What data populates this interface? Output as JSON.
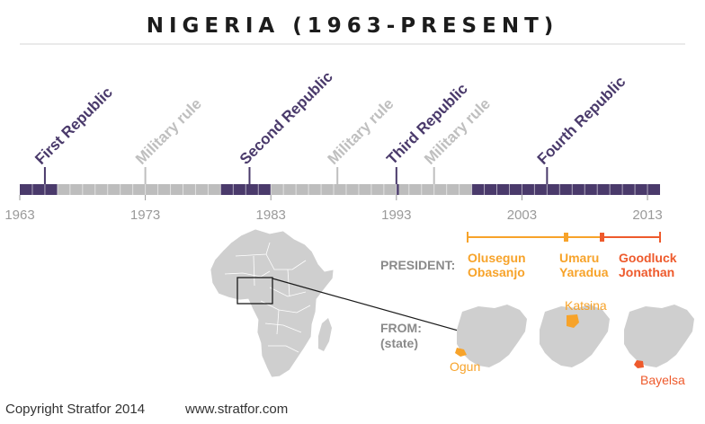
{
  "title": "NIGERIA (1963-PRESENT)",
  "colors": {
    "republic": "#4a3a6b",
    "military": "#bdbdbd",
    "military_text": "#bfbfbf",
    "axis_text": "#9a9a9a",
    "obasanjo": "#f7a32a",
    "yaradua": "#f7a32a",
    "jonathan": "#ee5a2c",
    "map_gray": "#cfcfcf"
  },
  "timeline": {
    "start_year": 1963,
    "end_year": 2014,
    "ticks": [
      "1963",
      "1973",
      "1983",
      "1993",
      "2003",
      "2013"
    ],
    "periods": [
      {
        "label": "First Republic",
        "kind": "republic",
        "start": 1963,
        "end": 1966,
        "marker": 1965
      },
      {
        "label": "Military rule",
        "kind": "military",
        "start": 1966,
        "end": 1979,
        "marker": 1973
      },
      {
        "label": "Second Republic",
        "kind": "republic",
        "start": 1979,
        "end": 1983,
        "marker": 1981.3
      },
      {
        "label": "Military rule",
        "kind": "military",
        "start": 1983,
        "end": 1999,
        "marker": 1988.3
      },
      {
        "label": "Third Republic",
        "kind": "republic",
        "start": 1993,
        "end": 1993.2,
        "marker": 1993
      },
      {
        "label": "Military rule",
        "kind": "military",
        "start": 1993.2,
        "end": 1999,
        "marker": 1996.0
      },
      {
        "label": "Fourth Republic",
        "kind": "republic",
        "start": 1999,
        "end": 2014,
        "marker": 2005.0
      }
    ]
  },
  "president_label": "PRESIDENT:",
  "from_label": "FROM:",
  "from_sublabel": "(state)",
  "presidents": [
    {
      "line1": "Olusegun",
      "line2": "Obasanjo",
      "state": "Ogun"
    },
    {
      "line1": "Umaru",
      "line2": "Yaradua",
      "state": "Katsina"
    },
    {
      "line1": "Goodluck",
      "line2": "Jonathan",
      "state": "Bayelsa"
    }
  ],
  "footer": {
    "copyright": "Copyright Stratfor 2014",
    "url": "www.stratfor.com"
  }
}
